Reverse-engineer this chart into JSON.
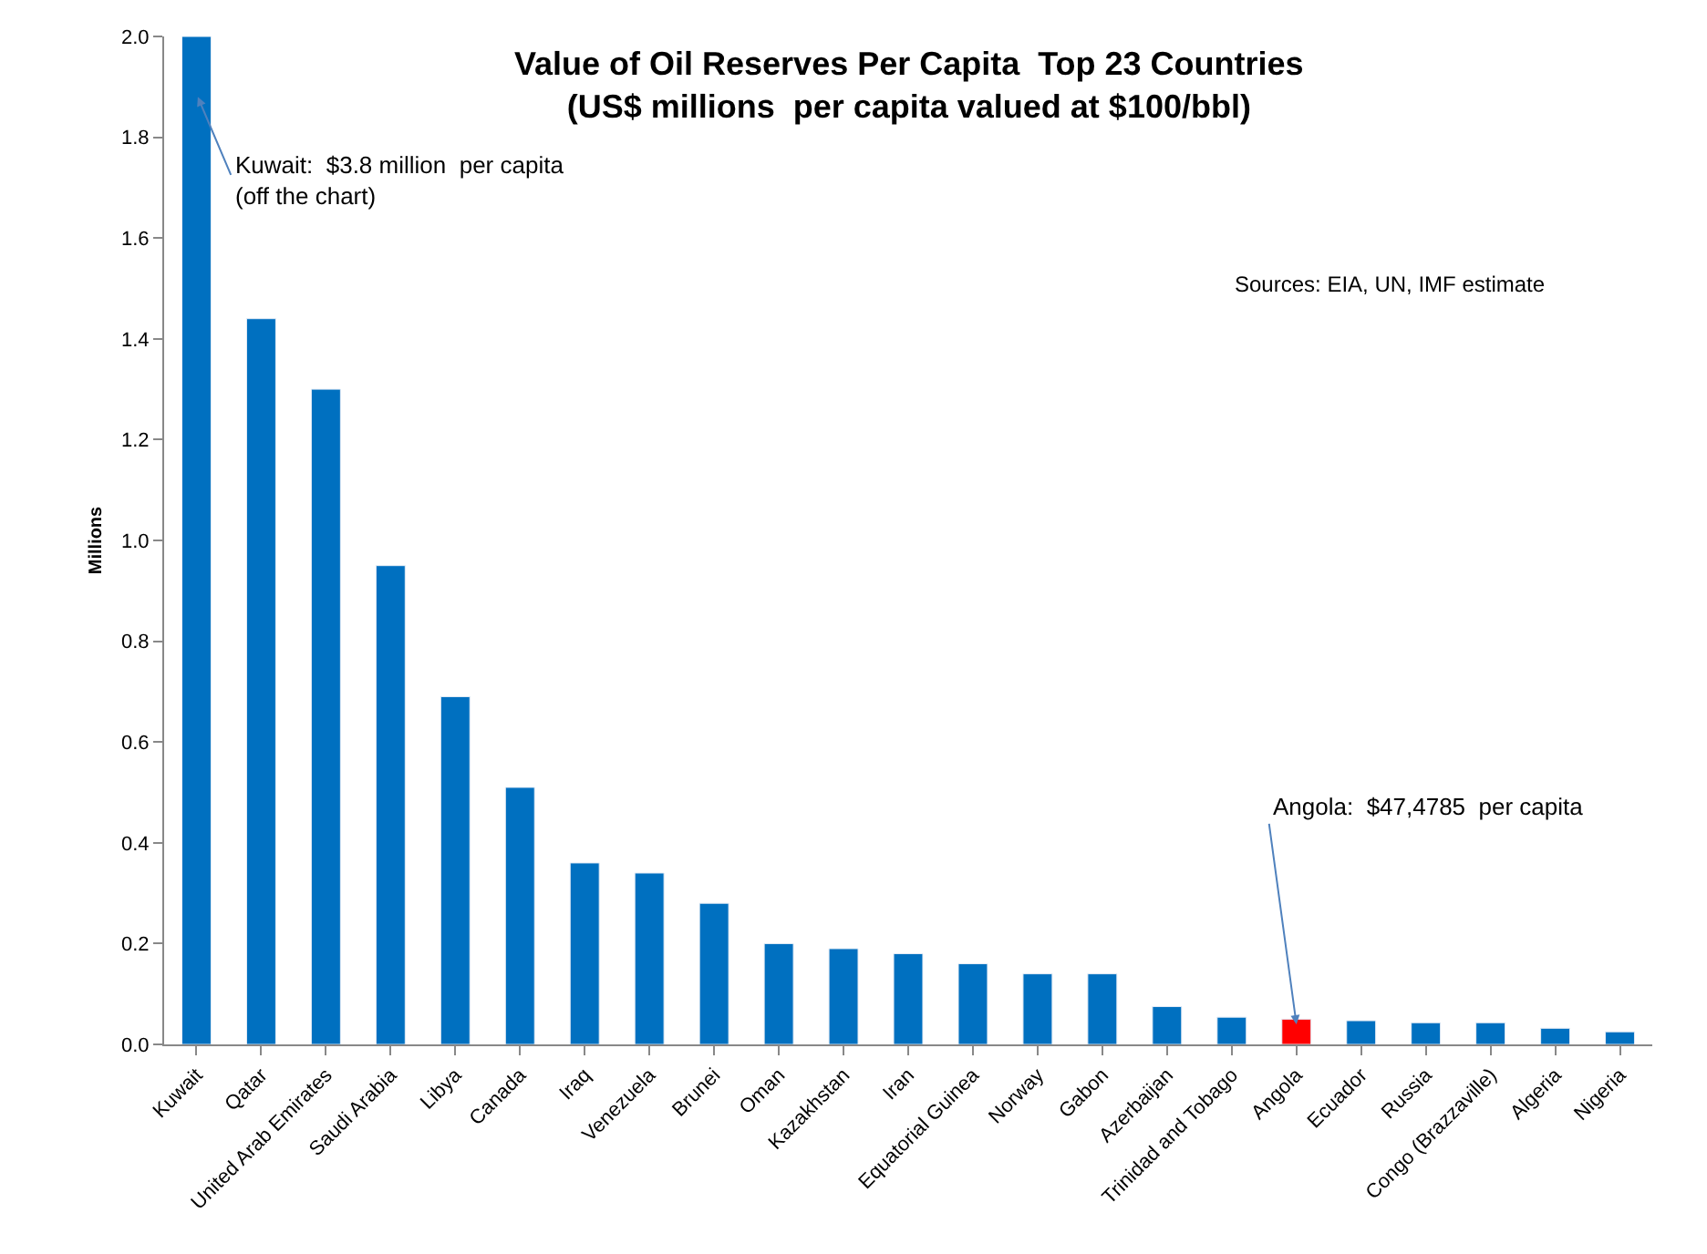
{
  "chart_data": {
    "type": "bar",
    "title": "Value of Oil Reserves Per Capita  Top 23 Countries\n(US$ millions  per capita valued at $100/bbl)",
    "ylabel": "Millions",
    "categories": [
      "Kuwait",
      "Qatar",
      "United Arab Emirates",
      "Saudi Arabia",
      "Libya",
      "Canada",
      "Iraq",
      "Venezuela",
      "Brunei",
      "Oman",
      "Kazakhstan",
      "Iran",
      "Equatorial Guinea",
      "Norway",
      "Gabon",
      "Azerbaijan",
      "Trinidad and Tobago",
      "Angola",
      "Ecuador",
      "Russia",
      "Congo (Brazzaville)",
      "Algeria",
      "Nigeria"
    ],
    "values": [
      2.0,
      1.44,
      1.3,
      0.95,
      0.69,
      0.51,
      0.36,
      0.34,
      0.28,
      0.2,
      0.19,
      0.18,
      0.16,
      0.14,
      0.14,
      0.075,
      0.054,
      0.05,
      0.047,
      0.043,
      0.043,
      0.032,
      0.025
    ],
    "colors": [
      "#0070c0",
      "#0070c0",
      "#0070c0",
      "#0070c0",
      "#0070c0",
      "#0070c0",
      "#0070c0",
      "#0070c0",
      "#0070c0",
      "#0070c0",
      "#0070c0",
      "#0070c0",
      "#0070c0",
      "#0070c0",
      "#0070c0",
      "#0070c0",
      "#0070c0",
      "#ff0000",
      "#0070c0",
      "#0070c0",
      "#0070c0",
      "#0070c0",
      "#0070c0"
    ],
    "ylim": [
      0,
      2.0
    ],
    "yticks": [
      {
        "value": 0,
        "label": "0.0"
      },
      {
        "value": 0.2,
        "label": "0.2"
      },
      {
        "value": 0.4,
        "label": "0.4"
      },
      {
        "value": 0.6,
        "label": "0.6"
      },
      {
        "value": 0.8,
        "label": "0.8"
      },
      {
        "value": 1.0,
        "label": "1.0"
      },
      {
        "value": 1.2,
        "label": "1.2"
      },
      {
        "value": 1.4,
        "label": "1.4"
      },
      {
        "value": 1.6,
        "label": "1.6"
      },
      {
        "value": 1.8,
        "label": "1.8"
      },
      {
        "value": 2.0,
        "label": "2.0"
      }
    ],
    "annotations": [
      "Kuwait:  $3.8 million  per capita\n(off the chart)",
      {
        "text": "Angola:  $47,4785  per capita",
        "x": "Angola",
        "y": 0.04
      },
      "Sources: EIA, UN, IMF estimate"
    ]
  }
}
